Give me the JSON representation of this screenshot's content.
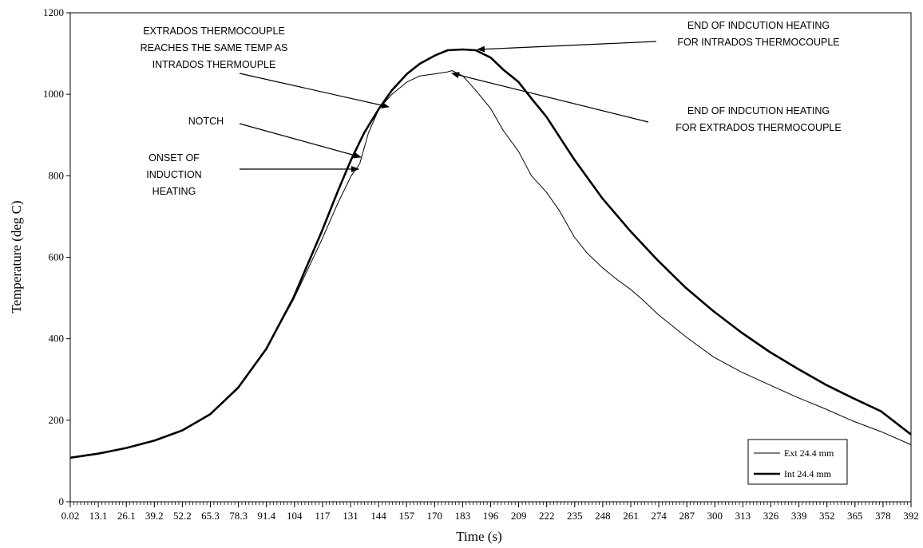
{
  "chart_data": {
    "type": "line",
    "title": "",
    "xlabel": "Time (s)",
    "ylabel": "Temperature (deg C)",
    "xlim": [
      0.02,
      392
    ],
    "ylim": [
      0,
      1200
    ],
    "y_ticks": [
      "0",
      "200",
      "400",
      "600",
      "800",
      "1000",
      "1200"
    ],
    "x_tick_labels": [
      "0.02",
      "13.1",
      "26.1",
      "39.2",
      "52.2",
      "65.3",
      "78.3",
      "91.4",
      "104",
      "117",
      "131",
      "144",
      "157",
      "170",
      "183",
      "196",
      "209",
      "222",
      "235",
      "248",
      "261",
      "274",
      "287",
      "300",
      "313",
      "326",
      "339",
      "352",
      "365",
      "378",
      "392"
    ],
    "grid": false,
    "legend_position": "bottom-right",
    "series": [
      {
        "name": "Ext 24.4 mm",
        "line_weight": "thin",
        "x": [
          0.02,
          13.1,
          26.1,
          39.2,
          52.2,
          65.3,
          78.3,
          91.4,
          104,
          117,
          125,
          131,
          135,
          139,
          144,
          150,
          157,
          163,
          170,
          176,
          178,
          183,
          189,
          196,
          202,
          209,
          215,
          222,
          228,
          235,
          241,
          248,
          255,
          261,
          267,
          274,
          287,
          300,
          313,
          326,
          339,
          352,
          365,
          378,
          392
        ],
        "y": [
          108,
          118,
          132,
          150,
          175,
          215,
          280,
          375,
          495,
          640,
          735,
          800,
          830,
          905,
          965,
          1000,
          1030,
          1045,
          1050,
          1055,
          1058,
          1045,
          1010,
          965,
          910,
          860,
          800,
          760,
          715,
          650,
          610,
          575,
          545,
          522,
          495,
          460,
          405,
          355,
          318,
          287,
          256,
          228,
          198,
          172,
          140
        ]
      },
      {
        "name": "Int 24.4 mm",
        "line_weight": "thick",
        "x": [
          0.02,
          13.1,
          26.1,
          39.2,
          52.2,
          65.3,
          78.3,
          91.4,
          104,
          117,
          125,
          131,
          137,
          144,
          150,
          157,
          163,
          170,
          176,
          183,
          189,
          196,
          202,
          209,
          215,
          222,
          235,
          248,
          261,
          274,
          287,
          300,
          313,
          326,
          339,
          352,
          365,
          378,
          392
        ],
        "y": [
          108,
          118,
          132,
          150,
          175,
          215,
          280,
          375,
          500,
          660,
          765,
          840,
          905,
          965,
          1010,
          1050,
          1075,
          1095,
          1108,
          1110,
          1108,
          1090,
          1060,
          1030,
          990,
          945,
          840,
          745,
          665,
          592,
          525,
          467,
          415,
          368,
          327,
          288,
          254,
          222,
          165
        ]
      }
    ],
    "annotations": [
      {
        "lines": [
          "EXTRADOS THERMOCOUPLE",
          "REACHES THE SAME TEMP AS",
          "INTRADOS THERMOUPLE"
        ]
      },
      {
        "lines": [
          "END OF INDCUTION HEATING",
          "FOR INTRADOS THERMOCOUPLE"
        ]
      },
      {
        "lines": [
          "END OF INDCUTION HEATING",
          "FOR EXTRADOS THERMOCOUPLE"
        ]
      },
      {
        "lines": [
          "NOTCH"
        ]
      },
      {
        "lines": [
          "ONSET OF",
          "INDUCTION",
          "HEATING"
        ]
      }
    ]
  }
}
